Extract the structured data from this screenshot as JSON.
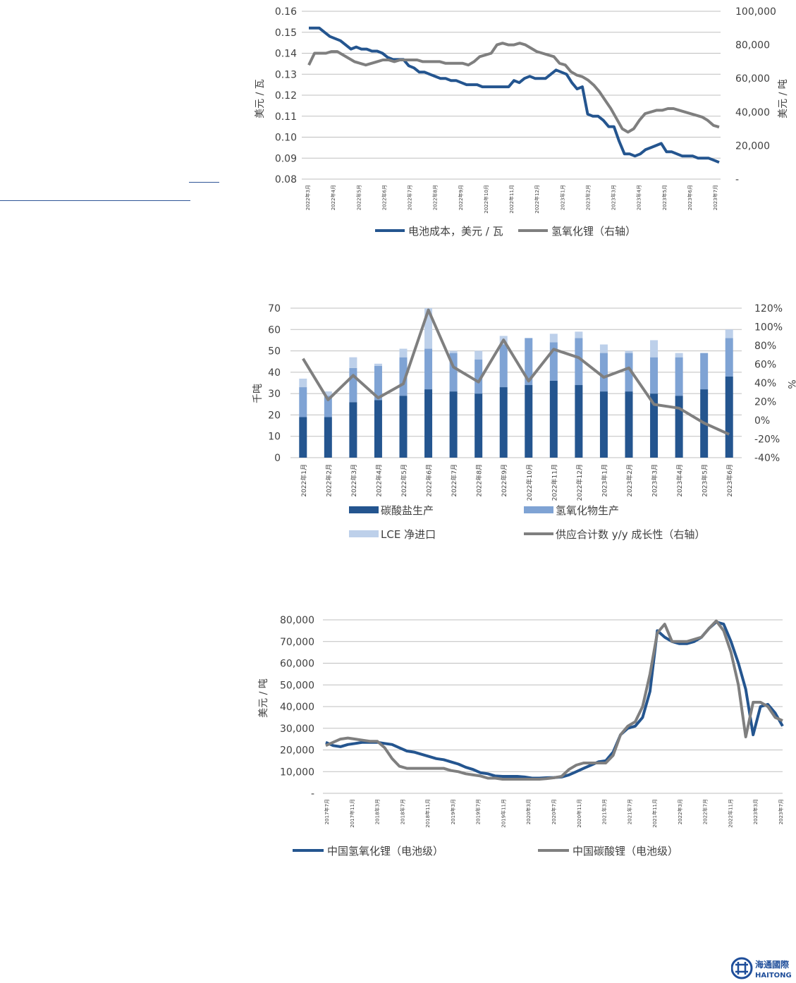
{
  "chart_data": [
    {
      "type": "line",
      "title": "",
      "left_axis": {
        "label": "美元 / 瓦",
        "ticks": [
          "0.16",
          "0.15",
          "0.14",
          "0.13",
          "0.12",
          "0.11",
          "0.10",
          "0.09",
          "0.08"
        ],
        "range": [
          0.08,
          0.16
        ]
      },
      "right_axis": {
        "label": "美元 / 吨",
        "ticks": [
          "100,000",
          "80,000",
          "60,000",
          "40,000",
          "20,000",
          "-"
        ],
        "range": [
          0,
          100000
        ]
      },
      "x_labels": [
        "2022年3月",
        "2022年4月",
        "2022年5月",
        "2022年6月",
        "2022年7月",
        "2022年8月",
        "2022年9月",
        "2022年10月",
        "2022年11月",
        "2022年12月",
        "2023年1月",
        "2023年2月",
        "2023年3月",
        "2023年4月",
        "2023年5月",
        "2023年6月",
        "2023年7月"
      ],
      "series": [
        {
          "name": "电池成本，美元 / 瓦",
          "axis": "left",
          "color": "#24558f",
          "values": [
            0.152,
            0.152,
            0.152,
            0.15,
            0.148,
            0.147,
            0.146,
            0.144,
            0.142,
            0.143,
            0.142,
            0.142,
            0.141,
            0.141,
            0.14,
            0.138,
            0.137,
            0.137,
            0.137,
            0.134,
            0.133,
            0.131,
            0.131,
            0.13,
            0.129,
            0.128,
            0.128,
            0.127,
            0.127,
            0.126,
            0.125,
            0.125,
            0.125,
            0.124,
            0.124,
            0.124,
            0.124,
            0.124,
            0.124,
            0.127,
            0.126,
            0.128,
            0.129,
            0.128,
            0.128,
            0.128,
            0.13,
            0.132,
            0.131,
            0.13,
            0.126,
            0.123,
            0.124,
            0.111,
            0.11,
            0.11,
            0.108,
            0.105,
            0.105,
            0.098,
            0.092,
            0.092,
            0.091,
            0.092,
            0.094,
            0.095,
            0.096,
            0.097,
            0.093,
            0.093,
            0.092,
            0.091,
            0.091,
            0.091,
            0.09,
            0.09,
            0.09,
            0.089,
            0.088
          ]
        },
        {
          "name": "氢氧化锂（右轴）",
          "axis": "right",
          "color": "#7f7f7f",
          "values": [
            68000,
            75000,
            75000,
            75000,
            76000,
            76000,
            74000,
            72000,
            70000,
            69000,
            68000,
            69000,
            70000,
            71000,
            71000,
            70000,
            71000,
            71000,
            71000,
            71000,
            70000,
            70000,
            70000,
            70000,
            69000,
            69000,
            69000,
            69000,
            68000,
            70000,
            73000,
            74000,
            75000,
            80000,
            81000,
            80000,
            80000,
            81000,
            80000,
            78000,
            76000,
            75000,
            74000,
            73000,
            69000,
            68000,
            64000,
            62000,
            61000,
            59000,
            56000,
            52000,
            47000,
            42000,
            36000,
            30000,
            28000,
            30000,
            35000,
            39000,
            40000,
            41000,
            41000,
            42000,
            42000,
            41000,
            40000,
            39000,
            38000,
            37000,
            35000,
            32000,
            31000
          ]
        }
      ]
    },
    {
      "type": "bar",
      "title": "",
      "left_axis": {
        "label": "千吨",
        "ticks": [
          "70",
          "60",
          "50",
          "40",
          "30",
          "20",
          "10",
          "0"
        ],
        "range": [
          0,
          70
        ]
      },
      "right_axis": {
        "label": "%",
        "ticks": [
          "120%",
          "100%",
          "80%",
          "60%",
          "40%",
          "20%",
          "0%",
          "-20%",
          "-40%"
        ],
        "range": [
          -40,
          120
        ]
      },
      "categories": [
        "2022年1月",
        "2022年2月",
        "2022年3月",
        "2022年4月",
        "2022年5月",
        "2022年6月",
        "2022年7月",
        "2022年8月",
        "2022年9月",
        "2022年10月",
        "2022年11月",
        "2022年12月",
        "2023年1月",
        "2023年2月",
        "2023年3月",
        "2023年4月",
        "2023年5月",
        "2023年6月"
      ],
      "series": [
        {
          "name": "碳酸盐生产",
          "type": "bar",
          "color": "#24558f",
          "values": [
            19,
            19,
            26,
            27,
            29,
            32,
            31,
            30,
            33,
            34,
            36,
            34,
            31,
            31,
            30,
            29,
            32,
            38
          ]
        },
        {
          "name": "氢氧化物生产",
          "type": "bar",
          "color": "#7fa3d4",
          "values": [
            14,
            10,
            16,
            16,
            18,
            19,
            18,
            16,
            20,
            22,
            18,
            22,
            18,
            18,
            17,
            18,
            17,
            18
          ]
        },
        {
          "name": "LCE 净进口",
          "type": "bar",
          "color": "#bdd0ea",
          "values": [
            4,
            2,
            5,
            1,
            4,
            19,
            1,
            4,
            4,
            0,
            4,
            3,
            4,
            1,
            8,
            2,
            0,
            4
          ]
        },
        {
          "name": "供应合计数 y/y 成长性（右轴）",
          "type": "line",
          "color": "#7f7f7f",
          "values": [
            66,
            22,
            48,
            24,
            39,
            118,
            57,
            41,
            86,
            42,
            76,
            67,
            46,
            56,
            17,
            13,
            -3,
            -15
          ]
        }
      ]
    },
    {
      "type": "line",
      "title": "",
      "y_axis": {
        "label": "美元 / 吨",
        "ticks": [
          "80,000",
          "70,000",
          "60,000",
          "50,000",
          "40,000",
          "30,000",
          "20,000",
          "10,000",
          "-"
        ],
        "range": [
          0,
          80000
        ]
      },
      "x_labels": [
        "2017年7月",
        "2017年11月",
        "2018年3月",
        "2018年7月",
        "2018年11月",
        "2019年3月",
        "2019年7月",
        "2019年11月",
        "2020年3月",
        "2020年7月",
        "2020年11月",
        "2021年3月",
        "2021年7月",
        "2021年11月",
        "2022年3月",
        "2022年7月",
        "2022年11月",
        "2023年3月",
        "2023年7月"
      ],
      "series": [
        {
          "name": "中国氢氧化锂（电池级）",
          "color": "#24558f",
          "values": [
            23500,
            22000,
            21500,
            22500,
            23000,
            23500,
            23500,
            23500,
            23000,
            22500,
            21000,
            19500,
            19000,
            18000,
            17000,
            16000,
            15500,
            14500,
            13500,
            12000,
            11000,
            9500,
            9000,
            8000,
            7800,
            7800,
            7800,
            7500,
            7000,
            7000,
            7200,
            7300,
            7500,
            8500,
            10000,
            11500,
            13000,
            14500,
            15000,
            19000,
            27000,
            30000,
            31000,
            35000,
            47000,
            75000,
            72000,
            70000,
            69000,
            69000,
            70000,
            72000,
            76000,
            79000,
            78000,
            70000,
            60000,
            48000,
            27000,
            40000,
            41000,
            37000,
            31000
          ]
        },
        {
          "name": "中国碳酸锂（电池级）",
          "color": "#7f7f7f",
          "values": [
            22000,
            23500,
            25000,
            25500,
            25000,
            24500,
            24000,
            24000,
            21000,
            16000,
            12500,
            11500,
            11500,
            11500,
            11500,
            11500,
            11500,
            10500,
            10000,
            9000,
            8500,
            8000,
            7000,
            7000,
            6500,
            6500,
            6500,
            6500,
            6500,
            6500,
            6800,
            7200,
            7800,
            11000,
            13000,
            14000,
            14000,
            14000,
            14000,
            17500,
            27000,
            31000,
            33000,
            40000,
            55000,
            74000,
            78000,
            70000,
            70000,
            70000,
            71000,
            72000,
            76000,
            79500,
            75000,
            65000,
            50000,
            26000,
            42000,
            42000,
            40000,
            35000,
            33500
          ]
        }
      ]
    }
  ],
  "logo": {
    "name_cn": "海通國際",
    "name_en": "HAITONG"
  }
}
